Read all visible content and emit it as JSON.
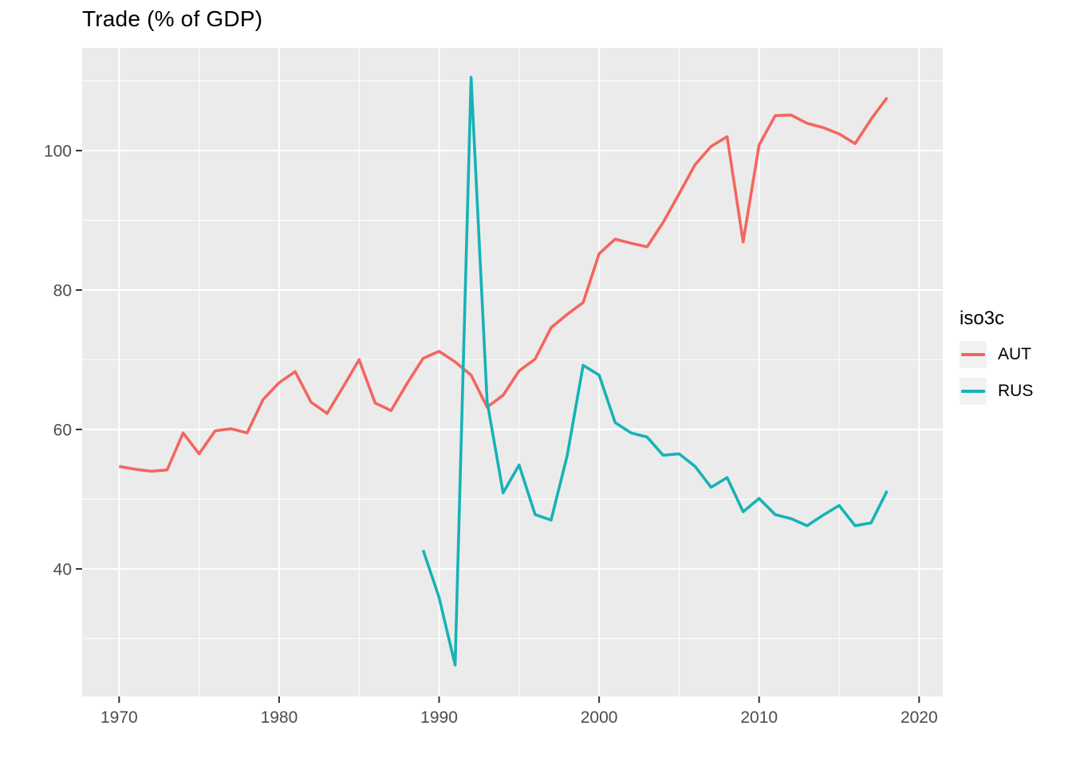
{
  "chart_data": {
    "type": "line",
    "title": "Trade (% of GDP)",
    "legend": {
      "title": "iso3c",
      "position": "right"
    },
    "style": {
      "panel_bg": "#EBEBEB",
      "grid_color": "#FFFFFF",
      "tick_color": "#333333",
      "axis_text_color": "#4D4D4D",
      "legend_key_bg": "#F2F2F2"
    },
    "axes": {
      "xlim": [
        1967.69,
        2021.48
      ],
      "ylim": [
        21.7,
        114.74
      ],
      "x_ticks": [
        1970,
        1980,
        1990,
        2000,
        2010,
        2020
      ],
      "x_tick_labels": [
        "1970",
        "1980",
        "1990",
        "2000",
        "2010",
        "2020"
      ],
      "x_minor": [
        1975,
        1985,
        1995,
        2005,
        2015
      ],
      "y_ticks": [
        40,
        60,
        80,
        100
      ],
      "y_tick_labels": [
        "40",
        "60",
        "80",
        "100"
      ],
      "y_minor": [
        30,
        50,
        70,
        90,
        110
      ],
      "grid": true
    },
    "series": [
      {
        "name": "AUT",
        "color": "#F4665E",
        "years": [
          1970,
          1971,
          1972,
          1973,
          1974,
          1975,
          1976,
          1977,
          1978,
          1979,
          1980,
          1981,
          1982,
          1983,
          1984,
          1985,
          1986,
          1987,
          1988,
          1989,
          1990,
          1991,
          1992,
          1993,
          1994,
          1995,
          1996,
          1997,
          1998,
          1999,
          2000,
          2001,
          2002,
          2003,
          2004,
          2005,
          2006,
          2007,
          2008,
          2009,
          2010,
          2011,
          2012,
          2013,
          2014,
          2015,
          2016,
          2017,
          2018
        ],
        "values": [
          54.7,
          54.3,
          54.0,
          54.2,
          59.5,
          56.5,
          59.8,
          60.1,
          59.5,
          64.3,
          66.7,
          68.3,
          63.9,
          62.3,
          66.1,
          70.0,
          63.8,
          62.7,
          66.6,
          70.2,
          71.2,
          69.7,
          67.8,
          63.2,
          64.9,
          68.4,
          70.1,
          74.6,
          76.5,
          78.2,
          85.2,
          87.3,
          86.7,
          86.2,
          89.7,
          93.8,
          98.0,
          100.6,
          102.0,
          86.9,
          100.8,
          105.0,
          105.1,
          103.9,
          103.3,
          102.4,
          101.0,
          104.5,
          107.6
        ]
      },
      {
        "name": "RUS",
        "color": "#17B2B6",
        "years": [
          1989,
          1990,
          1991,
          1992,
          1993,
          1994,
          1995,
          1996,
          1997,
          1998,
          1999,
          2000,
          2001,
          2002,
          2003,
          2004,
          2005,
          2006,
          2007,
          2008,
          2009,
          2010,
          2011,
          2012,
          2013,
          2014,
          2015,
          2016,
          2017,
          2018
        ],
        "values": [
          42.7,
          35.9,
          26.2,
          110.5,
          64.0,
          50.9,
          54.9,
          47.8,
          47.0,
          56.2,
          69.2,
          67.8,
          61.0,
          59.5,
          58.9,
          56.3,
          56.5,
          54.7,
          51.7,
          53.1,
          48.2,
          50.1,
          47.8,
          47.2,
          46.2,
          47.7,
          49.1,
          46.2,
          46.6,
          51.2
        ]
      }
    ]
  }
}
